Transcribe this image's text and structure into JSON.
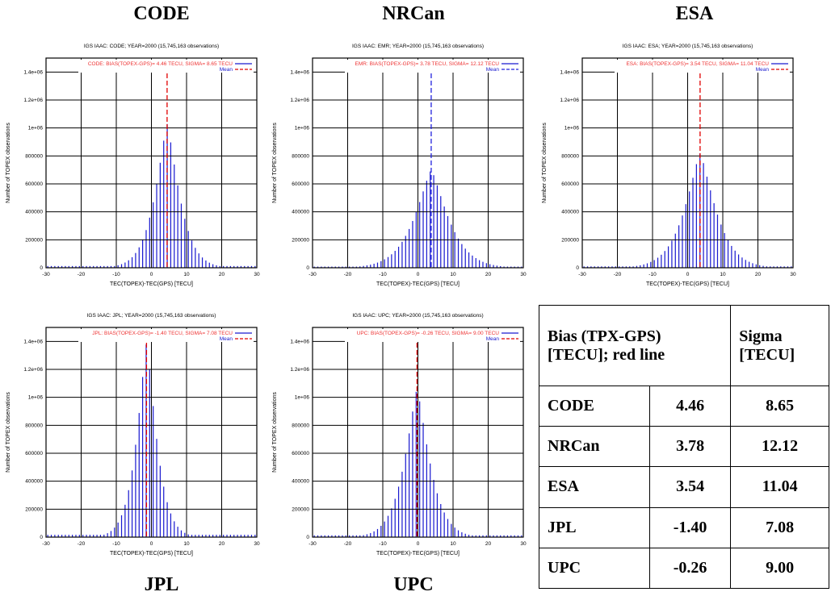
{
  "chart_data": [
    {
      "type": "bar",
      "center": "CODE",
      "title": "IGS IAAC: CODE; YEAR=2000 (15,745,163 observations)",
      "legend_main": "CODE: BIAS(TOPEX-GPS)= 4.46 TECU, SIGMA= 8.65 TECU",
      "legend_mean": "Mean",
      "xlabel": "TEC(TOPEX)-TEC(GPS) [TECU]",
      "ylabel": "Number of TOPEX observations",
      "xlim": [
        -30,
        30
      ],
      "ylim": [
        0,
        1500000
      ],
      "yticks": [
        "0",
        "200000",
        "400000",
        "600000",
        "800000",
        "1e+06",
        "1.2e+06",
        "1.4e+06"
      ],
      "xticks": [
        "-30",
        "-20",
        "-10",
        "0",
        "10",
        "20",
        "30"
      ],
      "bias": 4.46,
      "sigma": 8.65,
      "peak": 1030000,
      "mean_color": "#e00000"
    },
    {
      "type": "bar",
      "center": "NRCan",
      "title": "IGS IAAC: EMR; YEAR=2000 (15,745,163 observations)",
      "legend_main": "EMR: BIAS(TOPEX-GPS)= 3.78 TECU, SIGMA= 12.12 TECU",
      "legend_mean": "Mean",
      "xlabel": "TEC(TOPEX)-TEC(GPS) [TECU]",
      "ylabel": "Number of TOPEX observations",
      "xlim": [
        -30,
        30
      ],
      "ylim": [
        0,
        1500000
      ],
      "yticks": [
        "0",
        "200000",
        "400000",
        "600000",
        "800000",
        "1e+06",
        "1.2e+06",
        "1.4e+06"
      ],
      "xticks": [
        "-30",
        "-20",
        "-10",
        "0",
        "10",
        "20",
        "30"
      ],
      "bias": 3.78,
      "sigma": 12.12,
      "peak": 700000,
      "mean_color": "#2222dd"
    },
    {
      "type": "bar",
      "center": "ESA",
      "title": "IGS IAAC: ESA; YEAR=2000 (15,745,163 observations)",
      "legend_main": "ESA: BIAS(TOPEX-GPS)= 3.54 TECU, SIGMA= 11.04 TECU",
      "legend_mean": "Mean",
      "xlabel": "TEC(TOPEX)-TEC(GPS) [TECU]",
      "ylabel": "Number of TOPEX observations",
      "xlim": [
        -30,
        30
      ],
      "ylim": [
        0,
        1500000
      ],
      "yticks": [
        "0",
        "200000",
        "400000",
        "600000",
        "800000",
        "1e+06",
        "1.2e+06",
        "1.4e+06"
      ],
      "xticks": [
        "-30",
        "-20",
        "-10",
        "0",
        "10",
        "20",
        "30"
      ],
      "bias": 3.54,
      "sigma": 11.04,
      "peak": 820000,
      "mean_color": "#e00000"
    },
    {
      "type": "bar",
      "center": "JPL",
      "title": "IGS IAAC: JPL; YEAR=2000 (15,745,163 observations)",
      "legend_main": "JPL: BIAS(TOPEX-GPS)= -1.40 TECU, SIGMA= 7.08 TECU",
      "legend_mean": "Mean",
      "xlabel": "TEC(TOPEX)-TEC(GPS) [TECU]",
      "ylabel": "Number of TOPEX observations",
      "xlim": [
        -30,
        30
      ],
      "ylim": [
        0,
        1500000
      ],
      "yticks": [
        "0",
        "200000",
        "400000",
        "600000",
        "800000",
        "1e+06",
        "1.2e+06",
        "1.4e+06"
      ],
      "xticks": [
        "-30",
        "-20",
        "-10",
        "0",
        "10",
        "20",
        "30"
      ],
      "bias": -1.4,
      "sigma": 7.08,
      "peak": 1390000,
      "mean_color": "#e00000"
    },
    {
      "type": "bar",
      "center": "UPC",
      "title": "IGS IAAC: UPC; YEAR=2000 (15,745,163 observations)",
      "legend_main": "UPC: BIAS(TOPEX-GPS)= -0.26 TECU, SIGMA= 9.00 TECU",
      "legend_mean": "Mean",
      "xlabel": "TEC(TOPEX)-TEC(GPS) [TECU]",
      "ylabel": "Number of TOPEX observations",
      "xlim": [
        -30,
        30
      ],
      "ylim": [
        0,
        1500000
      ],
      "yticks": [
        "0",
        "200000",
        "400000",
        "600000",
        "800000",
        "1e+06",
        "1.2e+06",
        "1.4e+06"
      ],
      "xticks": [
        "-30",
        "-20",
        "-10",
        "0",
        "10",
        "20",
        "30"
      ],
      "bias": -0.26,
      "sigma": 9.0,
      "peak": 1060000,
      "mean_color": "#e00000"
    }
  ],
  "labels": {
    "code": "CODE",
    "nrcan": "NRCan",
    "esa": "ESA",
    "jpl": "JPL",
    "upc": "UPC"
  },
  "table": {
    "header_bias": "Bias (TPX-GPS) [TECU]; red line",
    "header_sigma": "Sigma [TECU]",
    "rows": [
      {
        "center": "CODE",
        "bias": "4.46",
        "sigma": "8.65"
      },
      {
        "center": "NRCan",
        "bias": "3.78",
        "sigma": "12.12"
      },
      {
        "center": "ESA",
        "bias": "3.54",
        "sigma": "11.04"
      },
      {
        "center": "JPL",
        "bias": "-1.40",
        "sigma": "7.08"
      },
      {
        "center": "UPC",
        "bias": "-0.26",
        "sigma": "9.00"
      }
    ]
  },
  "colors": {
    "bars": "#1a1ad0",
    "mean_red": "#e00000",
    "legend_text": "#ee3333"
  }
}
